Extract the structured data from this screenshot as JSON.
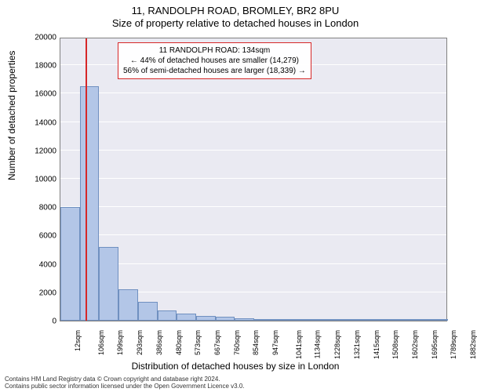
{
  "titles": {
    "line1": "11, RANDOLPH ROAD, BROMLEY, BR2 8PU",
    "line2": "Size of property relative to detached houses in London"
  },
  "chart": {
    "type": "histogram",
    "plot_bg": "#eaeaf2",
    "grid_color": "#ffffff",
    "border_color": "#808080",
    "bar_fill": "#b3c6e7",
    "bar_edge": "#7090c0",
    "marker_color": "#d62728",
    "marker_value": 134,
    "ylabel": "Number of detached properties",
    "xlabel": "Distribution of detached houses by size in London",
    "ylim": [
      0,
      20000
    ],
    "yticks": [
      0,
      2000,
      4000,
      6000,
      8000,
      10000,
      12000,
      14000,
      16000,
      18000,
      20000
    ],
    "x_tick_labels": [
      "12sqm",
      "106sqm",
      "199sqm",
      "293sqm",
      "386sqm",
      "480sqm",
      "573sqm",
      "667sqm",
      "760sqm",
      "854sqm",
      "947sqm",
      "1041sqm",
      "1134sqm",
      "1228sqm",
      "1321sqm",
      "1415sqm",
      "1508sqm",
      "1602sqm",
      "1695sqm",
      "1789sqm",
      "1882sqm"
    ],
    "x_bin_edges": [
      12,
      106,
      199,
      293,
      386,
      480,
      573,
      667,
      760,
      854,
      947,
      1041,
      1134,
      1228,
      1321,
      1415,
      1508,
      1602,
      1695,
      1789,
      1882
    ],
    "bar_heights": [
      8000,
      16500,
      5200,
      2200,
      1300,
      700,
      500,
      350,
      250,
      150,
      120,
      90,
      70,
      60,
      50,
      40,
      30,
      25,
      20,
      15
    ],
    "label_fontsize": 12,
    "tick_fontsize": 10
  },
  "annotation": {
    "line1": "11 RANDOLPH ROAD: 134sqm",
    "line2": "← 44% of detached houses are smaller (14,279)",
    "line3": "56% of semi-detached houses are larger (18,339) →",
    "border_color": "#d62728"
  },
  "footer": {
    "line1": "Contains HM Land Registry data © Crown copyright and database right 2024.",
    "line2": "Contains public sector information licensed under the Open Government Licence v3.0."
  }
}
